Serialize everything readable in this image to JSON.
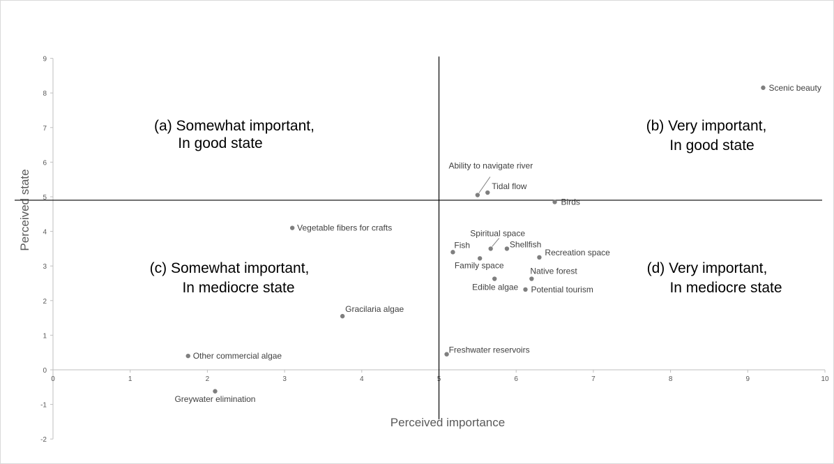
{
  "chart_data": {
    "type": "scatter",
    "xlabel": "Perceived importance",
    "ylabel": "Perceived state",
    "xlim": [
      0,
      10
    ],
    "ylim": [
      -2,
      9
    ],
    "x_ticks": [
      "0",
      "1",
      "2",
      "3",
      "4",
      "5",
      "6",
      "7",
      "8",
      "9",
      "10"
    ],
    "y_ticks": [
      "-2",
      "-1",
      "0",
      "1",
      "2",
      "3",
      "4",
      "5",
      "6",
      "7",
      "8",
      "9"
    ],
    "divider_x": 5,
    "divider_y": 4.9,
    "grid": false,
    "quadrants": [
      {
        "id": "a",
        "lines": [
          "(a) Somewhat important,",
          "In good state"
        ]
      },
      {
        "id": "b",
        "lines": [
          "(b) Very important,",
          "In good state"
        ]
      },
      {
        "id": "c",
        "lines": [
          "(c) Somewhat important,",
          "In mediocre state"
        ]
      },
      {
        "id": "d",
        "lines": [
          "(d) Very important,",
          "In mediocre state"
        ]
      }
    ],
    "points": [
      {
        "label": "Scenic beauty",
        "x": 9.2,
        "y": 8.15
      },
      {
        "label": "Ability to navigate river",
        "x": 5.5,
        "y": 5.05
      },
      {
        "label": "Tidal flow",
        "x": 5.63,
        "y": 5.12
      },
      {
        "label": "Birds",
        "x": 6.5,
        "y": 4.85
      },
      {
        "label": "Vegetable fibers for crafts",
        "x": 3.1,
        "y": 4.1
      },
      {
        "label": "Spiritual space",
        "x": 5.67,
        "y": 3.5
      },
      {
        "label": "Shellfish",
        "x": 5.88,
        "y": 3.5
      },
      {
        "label": "Fish",
        "x": 5.18,
        "y": 3.4
      },
      {
        "label": "Recreation space",
        "x": 6.3,
        "y": 3.25
      },
      {
        "label": "Family space",
        "x": 5.53,
        "y": 3.22
      },
      {
        "label": "Native forest",
        "x": 6.2,
        "y": 2.63
      },
      {
        "label": "Edible algae",
        "x": 5.72,
        "y": 2.63
      },
      {
        "label": "Potential tourism",
        "x": 6.12,
        "y": 2.32
      },
      {
        "label": "Gracilaria algae",
        "x": 3.75,
        "y": 1.55
      },
      {
        "label": "Freshwater reservoirs",
        "x": 5.1,
        "y": 0.45
      },
      {
        "label": "Other commercial algae",
        "x": 1.75,
        "y": 0.4
      },
      {
        "label": "Greywater elimination",
        "x": 2.1,
        "y": -0.62
      }
    ]
  }
}
